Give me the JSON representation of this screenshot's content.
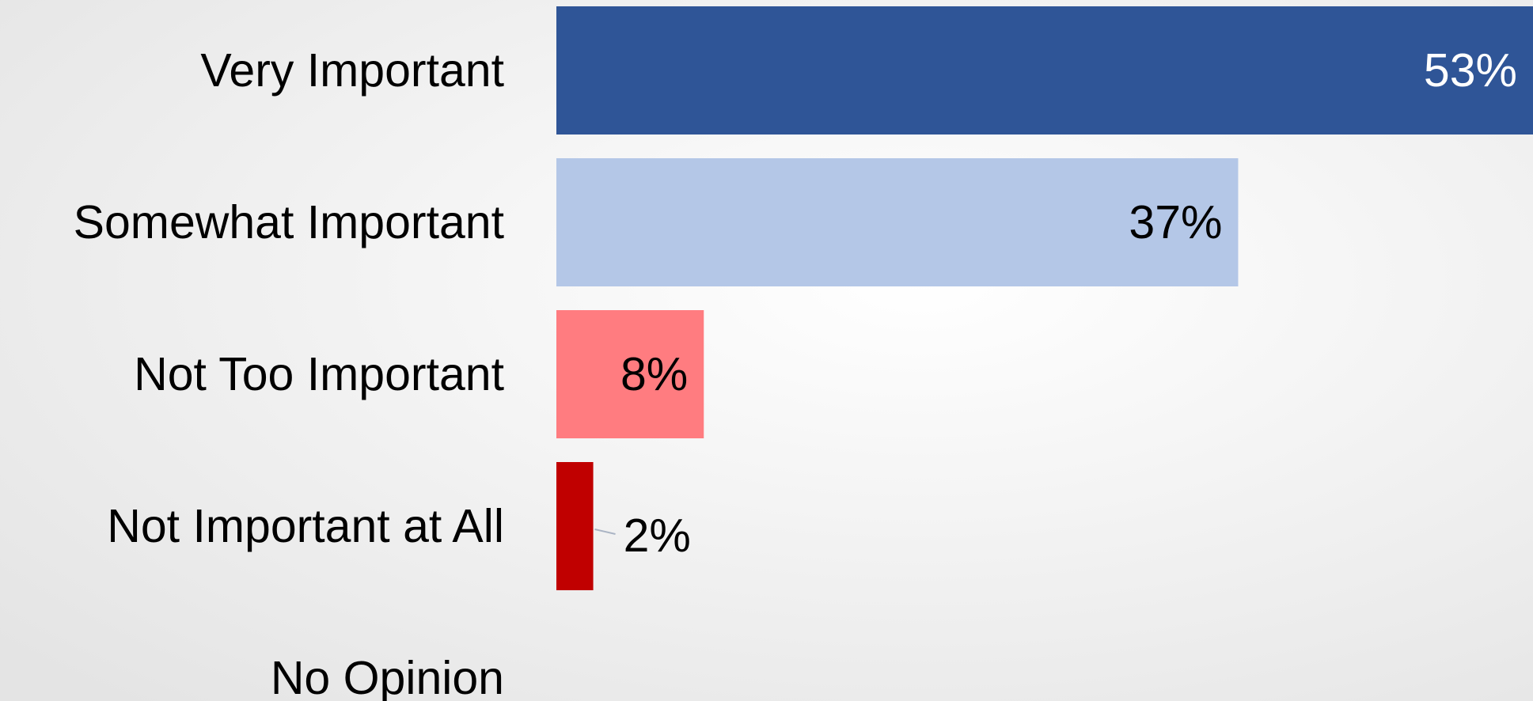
{
  "chart_data": {
    "type": "bar",
    "orientation": "horizontal",
    "categories": [
      "Very Important",
      "Somewhat Important",
      "Not Too Important",
      "Not Important at All",
      "No Opinion"
    ],
    "values": [
      53,
      37,
      8,
      2,
      null
    ],
    "value_labels": [
      "53%",
      "37%",
      "8%",
      "2%",
      null
    ],
    "colors": [
      "#2f5597",
      "#b4c7e7",
      "#ff7c80",
      "#c00000",
      null
    ]
  }
}
